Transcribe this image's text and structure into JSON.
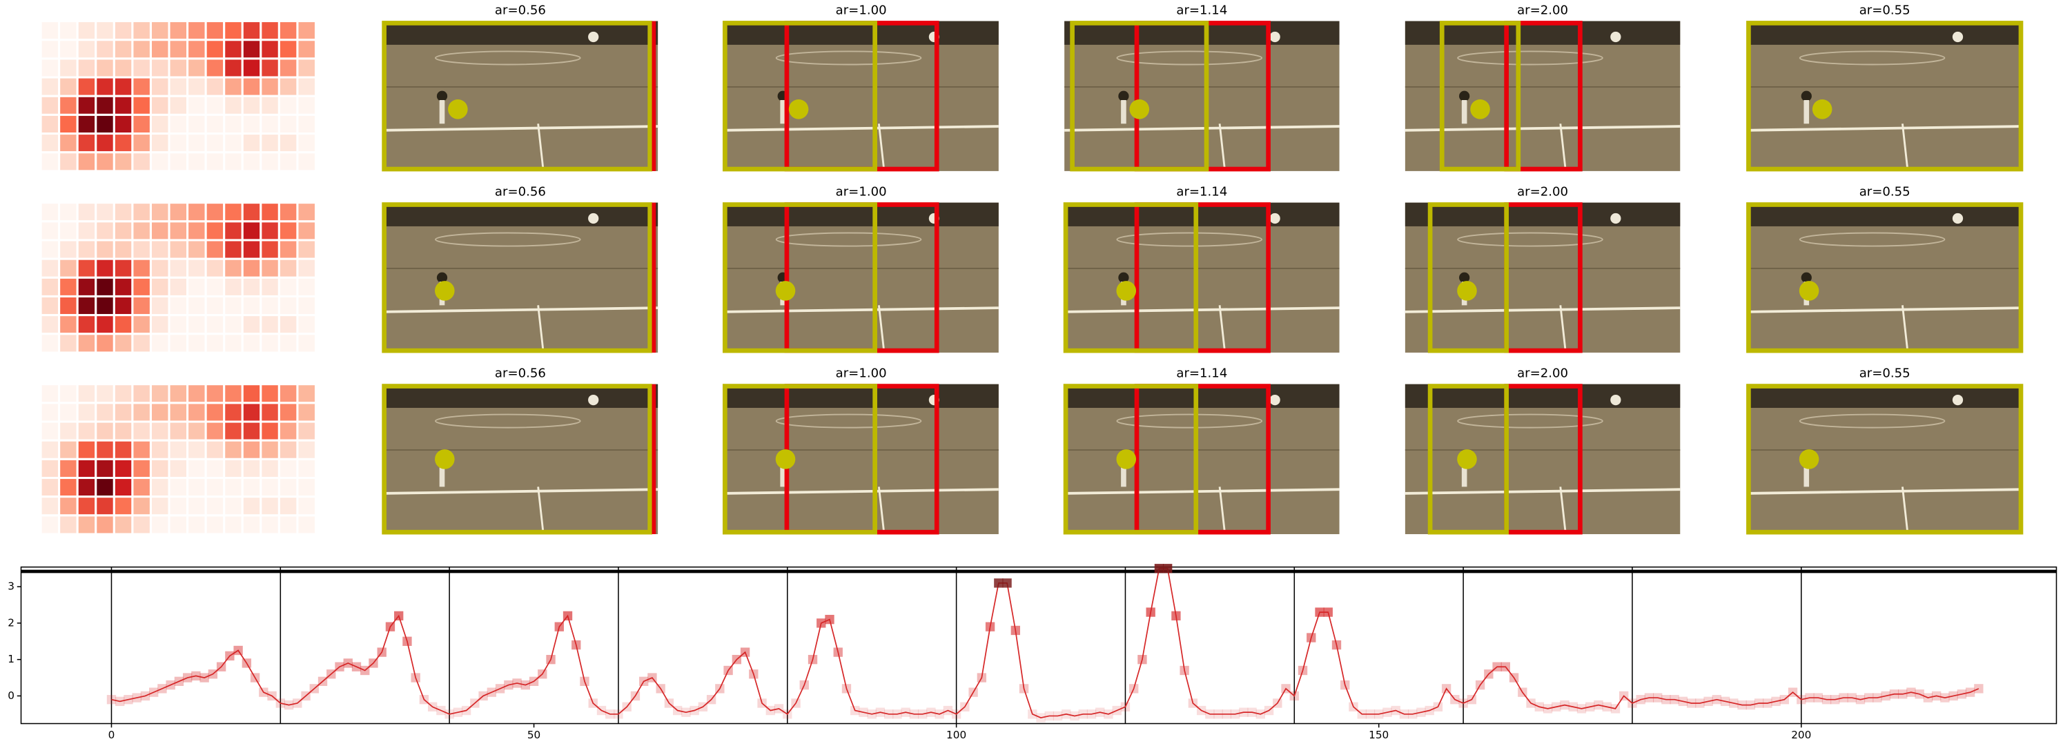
{
  "panel_rows": [
    [
      "ar=0.56",
      "ar=1.00",
      "ar=1.14",
      "ar=2.00",
      "ar=0.55"
    ],
    [
      "ar=0.56",
      "ar=1.00",
      "ar=1.14",
      "ar=2.00",
      "ar=0.55"
    ],
    [
      "ar=0.56",
      "ar=1.00",
      "ar=1.14",
      "ar=2.00",
      "ar=0.55"
    ]
  ],
  "chart_data": [
    {
      "type": "heatmap",
      "values": [
        [
          0.05,
          0.05,
          0.1,
          0.1,
          0.15,
          0.2,
          0.25,
          0.3,
          0.35,
          0.4,
          0.45,
          0.55,
          0.5,
          0.4,
          0.3
        ],
        [
          0.05,
          0.05,
          0.1,
          0.15,
          0.2,
          0.25,
          0.3,
          0.3,
          0.35,
          0.45,
          0.6,
          0.7,
          0.6,
          0.45,
          0.3
        ],
        [
          0.05,
          0.1,
          0.15,
          0.2,
          0.2,
          0.15,
          0.15,
          0.2,
          0.25,
          0.4,
          0.6,
          0.65,
          0.55,
          0.35,
          0.2
        ],
        [
          0.1,
          0.2,
          0.5,
          0.6,
          0.6,
          0.4,
          0.15,
          0.1,
          0.1,
          0.15,
          0.3,
          0.35,
          0.3,
          0.2,
          0.1
        ],
        [
          0.15,
          0.4,
          0.75,
          0.8,
          0.7,
          0.45,
          0.15,
          0.1,
          0.05,
          0.05,
          0.1,
          0.1,
          0.1,
          0.05,
          0.05
        ],
        [
          0.15,
          0.45,
          0.8,
          0.85,
          0.7,
          0.4,
          0.1,
          0.05,
          0.05,
          0.05,
          0.05,
          0.05,
          0.05,
          0.05,
          0.05
        ],
        [
          0.1,
          0.3,
          0.55,
          0.6,
          0.5,
          0.3,
          0.1,
          0.05,
          0.05,
          0.05,
          0.05,
          0.1,
          0.1,
          0.1,
          0.05
        ],
        [
          0.05,
          0.15,
          0.3,
          0.3,
          0.25,
          0.15,
          0.05,
          0.05,
          0.05,
          0.05,
          0.05,
          0.05,
          0.05,
          0.05,
          0.05
        ]
      ]
    },
    {
      "type": "heatmap",
      "values": [
        [
          0.05,
          0.05,
          0.1,
          0.1,
          0.15,
          0.2,
          0.25,
          0.3,
          0.35,
          0.4,
          0.45,
          0.55,
          0.5,
          0.4,
          0.3
        ],
        [
          0.05,
          0.05,
          0.1,
          0.15,
          0.2,
          0.25,
          0.3,
          0.3,
          0.35,
          0.45,
          0.6,
          0.7,
          0.6,
          0.45,
          0.3
        ],
        [
          0.05,
          0.1,
          0.15,
          0.2,
          0.2,
          0.15,
          0.15,
          0.2,
          0.25,
          0.4,
          0.6,
          0.65,
          0.55,
          0.35,
          0.2
        ],
        [
          0.1,
          0.25,
          0.55,
          0.65,
          0.6,
          0.4,
          0.15,
          0.1,
          0.1,
          0.15,
          0.3,
          0.35,
          0.3,
          0.2,
          0.1
        ],
        [
          0.15,
          0.45,
          0.8,
          0.9,
          0.75,
          0.45,
          0.15,
          0.1,
          0.05,
          0.05,
          0.1,
          0.1,
          0.1,
          0.05,
          0.05
        ],
        [
          0.15,
          0.5,
          0.85,
          0.9,
          0.75,
          0.4,
          0.1,
          0.05,
          0.05,
          0.05,
          0.05,
          0.05,
          0.05,
          0.05,
          0.05
        ],
        [
          0.1,
          0.35,
          0.6,
          0.65,
          0.5,
          0.3,
          0.1,
          0.05,
          0.05,
          0.05,
          0.05,
          0.1,
          0.1,
          0.1,
          0.05
        ],
        [
          0.05,
          0.15,
          0.3,
          0.35,
          0.25,
          0.15,
          0.05,
          0.05,
          0.05,
          0.05,
          0.05,
          0.05,
          0.05,
          0.05,
          0.05
        ]
      ]
    },
    {
      "type": "heatmap",
      "values": [
        [
          0.05,
          0.05,
          0.1,
          0.1,
          0.15,
          0.2,
          0.25,
          0.3,
          0.35,
          0.4,
          0.45,
          0.55,
          0.5,
          0.4,
          0.3
        ],
        [
          0.05,
          0.05,
          0.1,
          0.15,
          0.2,
          0.25,
          0.3,
          0.3,
          0.35,
          0.45,
          0.6,
          0.7,
          0.6,
          0.45,
          0.3
        ],
        [
          0.05,
          0.1,
          0.15,
          0.2,
          0.2,
          0.15,
          0.15,
          0.2,
          0.25,
          0.4,
          0.6,
          0.65,
          0.55,
          0.35,
          0.2
        ],
        [
          0.1,
          0.25,
          0.55,
          0.6,
          0.6,
          0.4,
          0.15,
          0.1,
          0.1,
          0.15,
          0.3,
          0.35,
          0.3,
          0.2,
          0.1
        ],
        [
          0.15,
          0.45,
          0.8,
          0.85,
          0.75,
          0.45,
          0.15,
          0.1,
          0.05,
          0.05,
          0.1,
          0.1,
          0.1,
          0.05,
          0.05
        ],
        [
          0.15,
          0.5,
          0.85,
          1.0,
          0.75,
          0.4,
          0.1,
          0.05,
          0.05,
          0.05,
          0.05,
          0.05,
          0.05,
          0.05,
          0.05
        ],
        [
          0.1,
          0.35,
          0.6,
          0.65,
          0.5,
          0.3,
          0.1,
          0.05,
          0.05,
          0.05,
          0.05,
          0.1,
          0.1,
          0.1,
          0.05
        ],
        [
          0.05,
          0.15,
          0.3,
          0.35,
          0.25,
          0.15,
          0.05,
          0.05,
          0.05,
          0.05,
          0.05,
          0.05,
          0.05,
          0.05,
          0.05
        ]
      ]
    },
    {
      "type": "line",
      "color": "#d62728",
      "x": [
        0,
        1,
        2,
        3,
        4,
        5,
        6,
        7,
        8,
        9,
        10,
        11,
        12,
        13,
        14,
        15,
        16,
        17,
        18,
        19,
        20,
        21,
        22,
        23,
        24,
        25,
        26,
        27,
        28,
        29,
        30,
        31,
        32,
        33,
        34,
        35,
        36,
        37,
        38,
        39,
        40,
        41,
        42,
        43,
        44,
        45,
        46,
        47,
        48,
        49,
        50,
        51,
        52,
        53,
        54,
        55,
        56,
        57,
        58,
        59,
        60,
        61,
        62,
        63,
        64,
        65,
        66,
        67,
        68,
        69,
        70,
        71,
        72,
        73,
        74,
        75,
        76,
        77,
        78,
        79,
        80,
        81,
        82,
        83,
        84,
        85,
        86,
        87,
        88,
        89,
        90,
        91,
        92,
        93,
        94,
        95,
        96,
        97,
        98,
        99,
        100,
        101,
        102,
        103,
        104,
        105,
        106,
        107,
        108,
        109,
        110,
        111,
        112,
        113,
        114,
        115,
        116,
        117,
        118,
        119,
        120,
        121,
        122,
        123,
        124,
        125,
        126,
        127,
        128,
        129,
        130,
        131,
        132,
        133,
        134,
        135,
        136,
        137,
        138,
        139,
        140,
        141,
        142,
        143,
        144,
        145,
        146,
        147,
        148,
        149,
        150,
        151,
        152,
        153,
        154,
        155,
        156,
        157,
        158,
        159,
        160,
        161,
        162,
        163,
        164,
        165,
        166,
        167,
        168,
        169,
        170,
        171,
        172,
        173,
        174,
        175,
        176,
        177,
        178,
        179,
        180,
        181,
        182,
        183,
        184,
        185,
        186,
        187,
        188,
        189,
        190,
        191,
        192,
        193,
        194,
        195,
        196,
        197,
        198,
        199,
        200,
        201,
        202,
        203,
        204,
        205,
        206,
        207,
        208,
        209,
        210,
        211,
        212,
        213,
        214,
        215,
        216,
        217,
        218,
        219,
        220,
        221
      ],
      "values": [
        -0.1,
        -0.15,
        -0.1,
        -0.05,
        0,
        0.1,
        0.2,
        0.3,
        0.4,
        0.5,
        0.55,
        0.5,
        0.6,
        0.8,
        1.1,
        1.25,
        0.9,
        0.5,
        0.1,
        0.0,
        -0.2,
        -0.25,
        -0.2,
        0,
        0.2,
        0.4,
        0.6,
        0.8,
        0.9,
        0.8,
        0.7,
        0.9,
        1.2,
        1.9,
        2.2,
        1.5,
        0.5,
        -0.1,
        -0.3,
        -0.4,
        -0.5,
        -0.45,
        -0.4,
        -0.2,
        0,
        0.1,
        0.2,
        0.3,
        0.35,
        0.3,
        0.4,
        0.6,
        1.0,
        1.9,
        2.2,
        1.4,
        0.4,
        -0.2,
        -0.4,
        -0.5,
        -0.5,
        -0.3,
        0,
        0.4,
        0.5,
        0.2,
        -0.2,
        -0.4,
        -0.45,
        -0.4,
        -0.3,
        -0.1,
        0.2,
        0.7,
        1.0,
        1.2,
        0.6,
        -0.2,
        -0.4,
        -0.35,
        -0.5,
        -0.2,
        0.3,
        1.0,
        2.0,
        2.1,
        1.2,
        0.2,
        -0.4,
        -0.45,
        -0.5,
        -0.45,
        -0.5,
        -0.5,
        -0.45,
        -0.5,
        -0.5,
        -0.45,
        -0.5,
        -0.4,
        -0.5,
        -0.3,
        0.1,
        0.5,
        1.9,
        3.1,
        3.1,
        1.8,
        0.2,
        -0.5,
        -0.6,
        -0.55,
        -0.55,
        -0.5,
        -0.55,
        -0.5,
        -0.5,
        -0.45,
        -0.5,
        -0.4,
        -0.3,
        0.2,
        1.0,
        2.3,
        3.5,
        3.5,
        2.2,
        0.7,
        -0.2,
        -0.4,
        -0.5,
        -0.5,
        -0.5,
        -0.5,
        -0.45,
        -0.45,
        -0.5,
        -0.4,
        -0.2,
        0.2,
        0.0,
        0.7,
        1.6,
        2.3,
        2.3,
        1.4,
        0.3,
        -0.3,
        -0.5,
        -0.5,
        -0.5,
        -0.45,
        -0.4,
        -0.5,
        -0.5,
        -0.45,
        -0.4,
        -0.3,
        0.2,
        -0.1,
        -0.2,
        -0.1,
        0.3,
        0.6,
        0.8,
        0.8,
        0.5,
        0.1,
        -0.2,
        -0.3,
        -0.35,
        -0.3,
        -0.25,
        -0.3,
        -0.35,
        -0.3,
        -0.25,
        -0.3,
        -0.35,
        0.0,
        -0.2,
        -0.1,
        -0.05,
        -0.05,
        -0.1,
        -0.1,
        -0.15,
        -0.2,
        -0.2,
        -0.15,
        -0.1,
        -0.15,
        -0.2,
        -0.25,
        -0.25,
        -0.2,
        -0.2,
        -0.15,
        -0.1,
        0.1,
        -0.1,
        -0.05,
        -0.05,
        -0.1,
        -0.1,
        -0.05,
        -0.05,
        -0.1,
        -0.05,
        -0.05,
        0,
        0.05,
        0.05,
        0.1,
        0.05,
        -0.05,
        0.0,
        -0.05,
        0,
        0.05,
        0.1,
        0.2
      ],
      "xlim": [
        -10.7,
        230.2
      ],
      "ylim": [
        -0.76,
        3.54
      ],
      "xticks": [
        0,
        50,
        100,
        150,
        200
      ],
      "yticks": [
        0,
        1,
        2,
        3
      ],
      "vlines": [
        0,
        20,
        40,
        60,
        80,
        100,
        120,
        140,
        160,
        180,
        200
      ],
      "hline": 3.42
    }
  ]
}
